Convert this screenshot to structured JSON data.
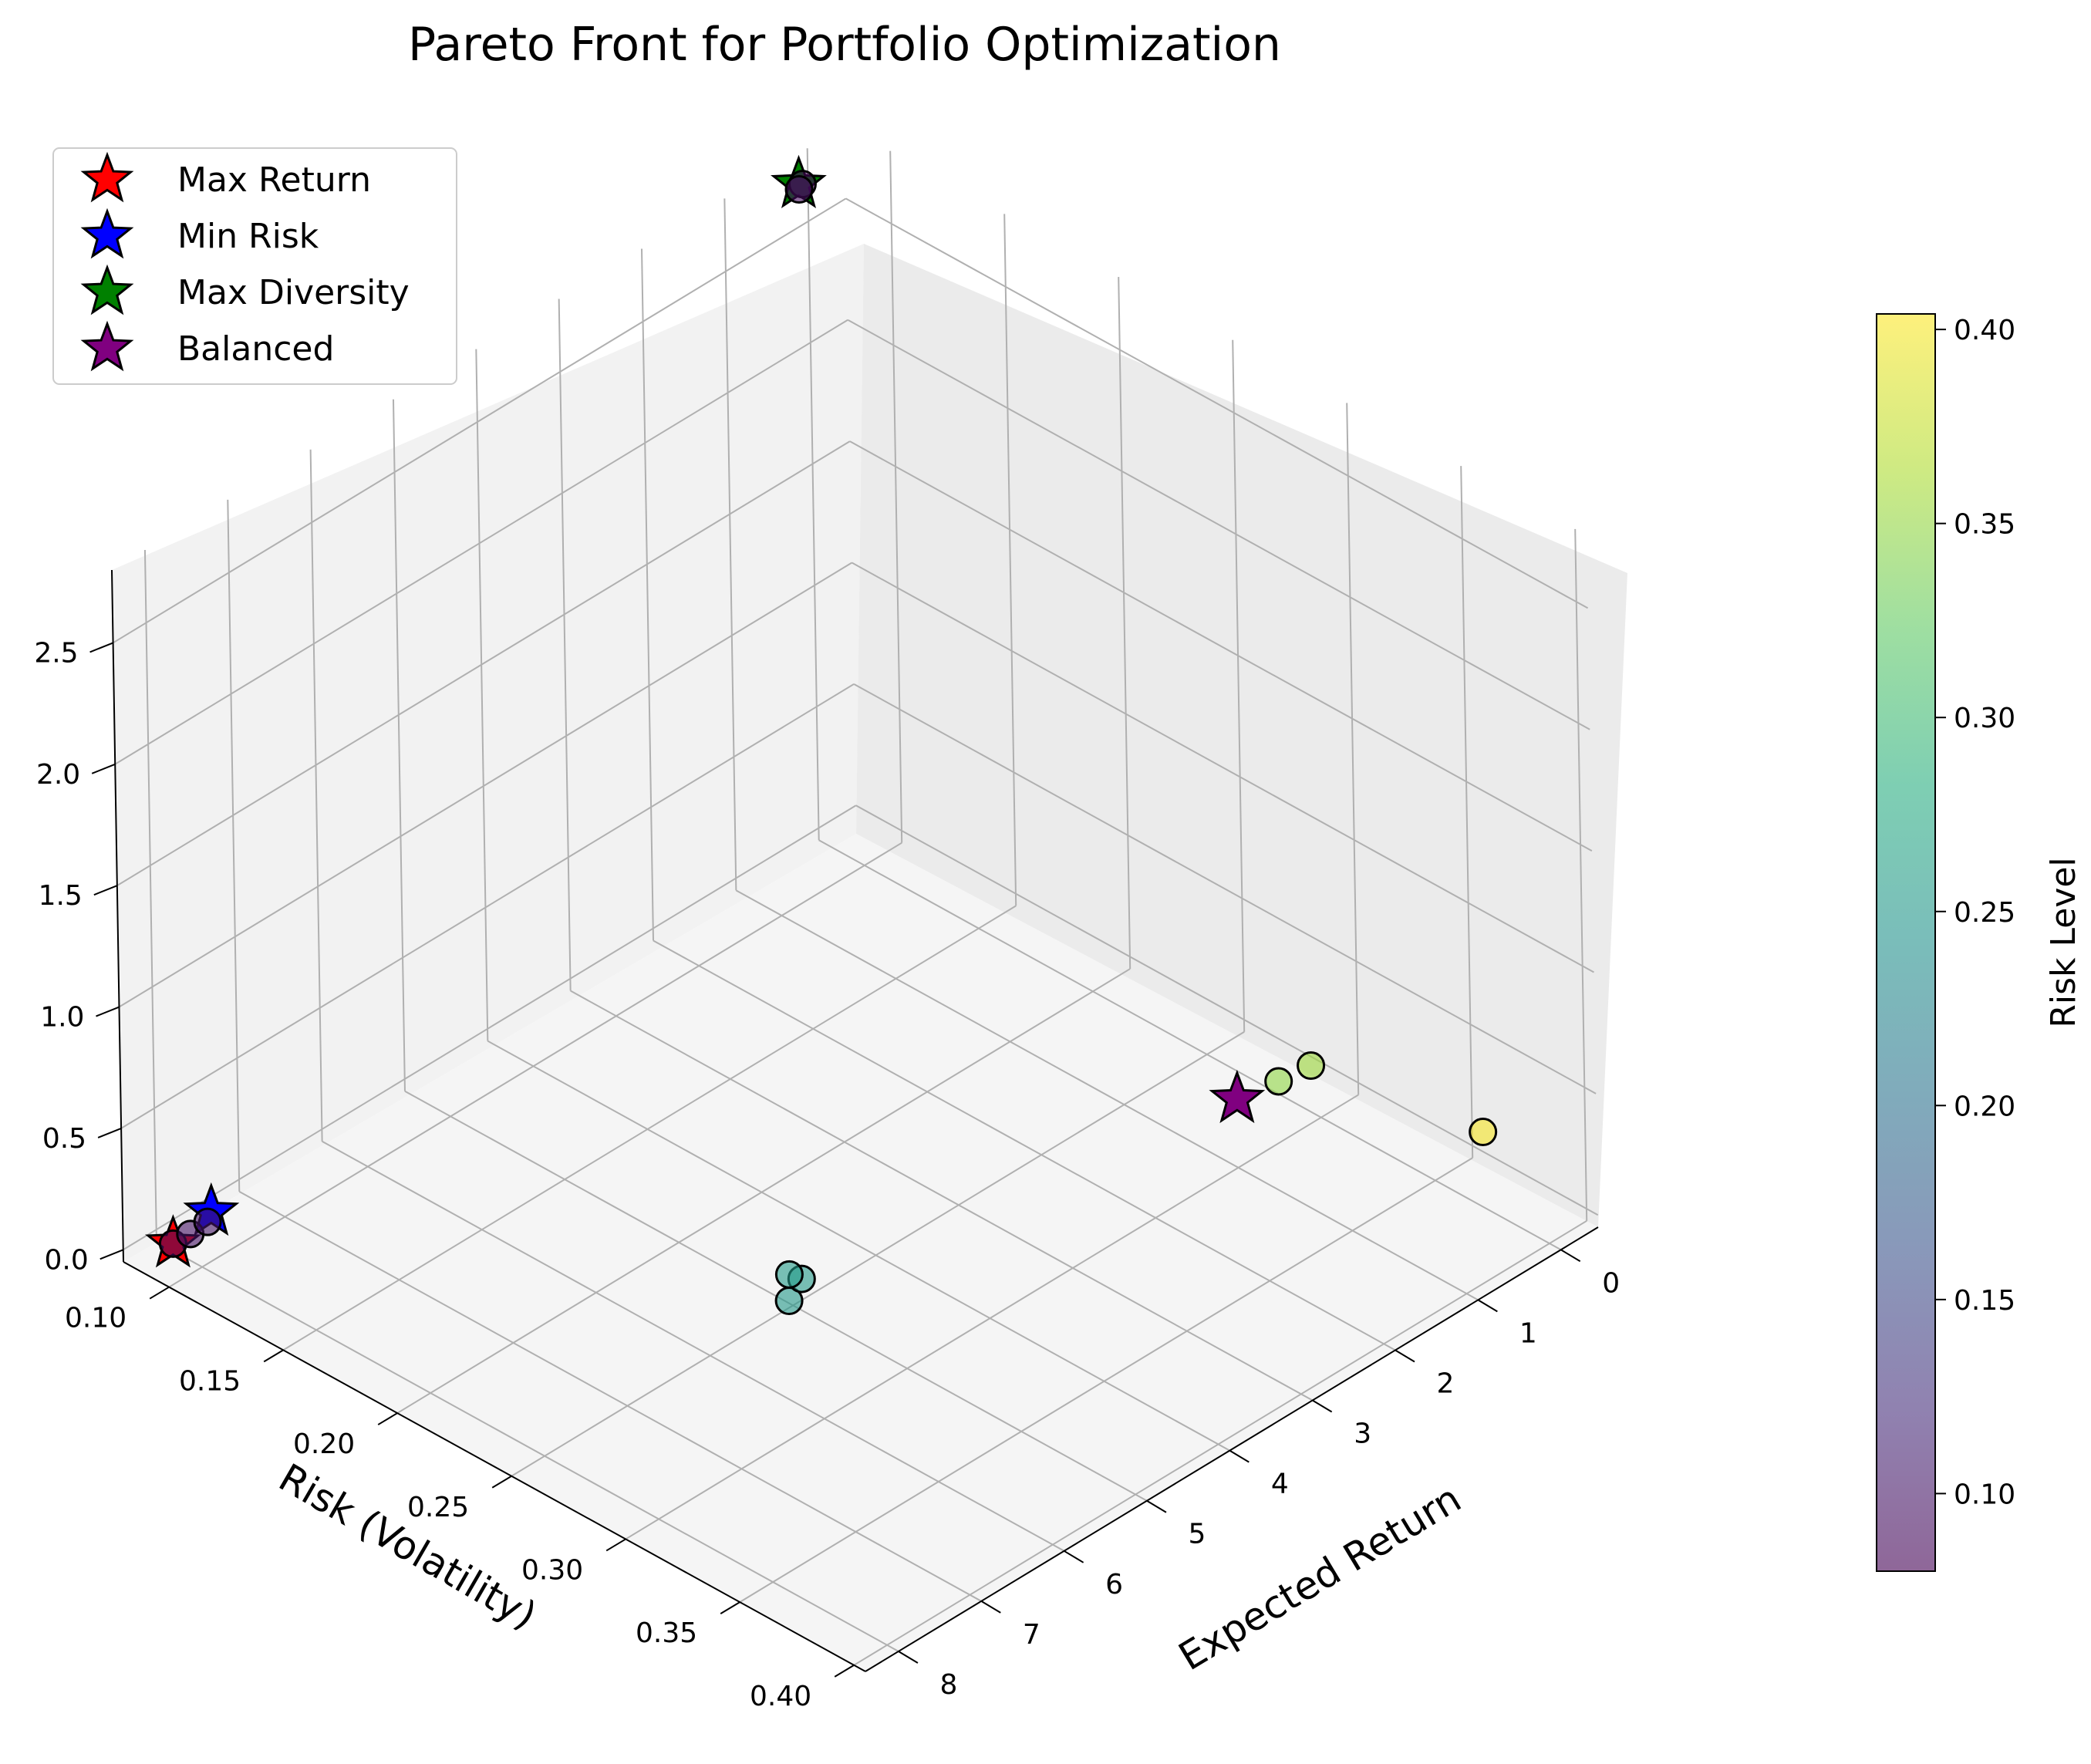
{
  "chart_data": {
    "type": "scatter",
    "projection": "3d",
    "title": "Pareto Front for Portfolio Optimization",
    "xlabel": "Risk (Volatility)",
    "ylabel": "Expected Return",
    "zlabel": "",
    "xlim": [
      0.08,
      0.405
    ],
    "ylim": [
      -0.45,
      8.4
    ],
    "zlim": [
      -0.05,
      2.8
    ],
    "x_ticks": [
      "0.10",
      "0.15",
      "0.20",
      "0.25",
      "0.30",
      "0.35",
      "0.40"
    ],
    "y_ticks": [
      "0",
      "1",
      "2",
      "3",
      "4",
      "5",
      "6",
      "7",
      "8"
    ],
    "z_ticks": [
      "0.0",
      "0.5",
      "1.0",
      "1.5",
      "2.0",
      "2.5"
    ],
    "grid": true,
    "colormap": "viridis",
    "colorbar": {
      "label": "Risk Level",
      "range": [
        0.08,
        0.404
      ],
      "ticks": [
        "0.10",
        "0.15",
        "0.20",
        "0.25",
        "0.30",
        "0.35",
        "0.40"
      ]
    },
    "points": [
      {
        "x": 0.091,
        "y": 8.1,
        "z": 0.02,
        "c": 0.091
      },
      {
        "x": 0.095,
        "y": 8.0,
        "z": 0.06,
        "c": 0.095
      },
      {
        "x": 0.099,
        "y": 7.9,
        "z": 0.11,
        "c": 0.099
      },
      {
        "x": 0.252,
        "y": 5.1,
        "z": 0.0,
        "c": 0.252
      },
      {
        "x": 0.254,
        "y": 5.0,
        "z": 0.08,
        "c": 0.254
      },
      {
        "x": 0.256,
        "y": 5.2,
        "z": 0.15,
        "c": 0.256
      },
      {
        "x": 0.348,
        "y": 1.8,
        "z": 0.72,
        "c": 0.348
      },
      {
        "x": 0.355,
        "y": 1.6,
        "z": 0.78,
        "c": 0.355
      },
      {
        "x": 0.401,
        "y": 0.8,
        "z": 0.58,
        "c": 0.401
      },
      {
        "x": 0.085,
        "y": 0.2,
        "z": 2.72,
        "c": 0.085
      },
      {
        "x": 0.089,
        "y": 0.35,
        "z": 2.75,
        "c": 0.089
      }
    ],
    "highlights": [
      {
        "label": "Max Return",
        "color": "#ff0000",
        "x": 0.091,
        "y": 8.1,
        "z": 0.02
      },
      {
        "label": "Min Risk",
        "color": "#0000ff",
        "x": 0.097,
        "y": 7.8,
        "z": 0.12
      },
      {
        "label": "Max Diversity",
        "color": "#008000",
        "x": 0.087,
        "y": 0.3,
        "z": 2.75
      },
      {
        "label": "Balanced",
        "color": "#800080",
        "x": 0.348,
        "y": 2.3,
        "z": 0.75
      }
    ],
    "legend": {
      "placement": "top-left",
      "entries": [
        {
          "label": "Max Return",
          "color": "#ff0000"
        },
        {
          "label": "Min Risk",
          "color": "#0000ff"
        },
        {
          "label": "Max Diversity",
          "color": "#008000"
        },
        {
          "label": "Balanced",
          "color": "#800080"
        }
      ]
    }
  }
}
